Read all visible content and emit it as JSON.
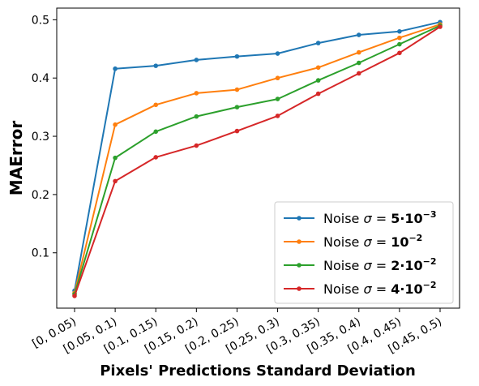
{
  "chart_data": {
    "type": "line",
    "title": "",
    "xlabel": "Pixels' Predictions Standard Deviation",
    "ylabel": "MAError",
    "categories": [
      "[0, 0.05)",
      "[0.05, 0.1)",
      "[0.1, 0.15)",
      "[0.15, 0.2)",
      "[0.2, 0.25)",
      "[0.25, 0.3)",
      "[0.3, 0.35)",
      "[0.35, 0.4)",
      "[0.4, 0.45)",
      "[0.45, 0.5)"
    ],
    "ylim": [
      0.005,
      0.52
    ],
    "yticks": [
      0.1,
      0.2,
      0.3,
      0.4,
      0.5
    ],
    "ytick_labels": [
      "0.1",
      "0.2",
      "0.3",
      "0.4",
      "0.5"
    ],
    "grid": false,
    "legend_position": "bottom-right",
    "series": [
      {
        "name": "Noise σ = 5·10⁻³",
        "legend": {
          "prefix": "Noise ",
          "sigma": "σ",
          "eq": " = ",
          "bold": "5·10",
          "sup": "−3"
        },
        "color": "#1f77b4",
        "values": [
          0.035,
          0.416,
          0.421,
          0.431,
          0.437,
          0.442,
          0.46,
          0.474,
          0.48,
          0.496
        ]
      },
      {
        "name": "Noise σ = 10⁻²",
        "legend": {
          "prefix": "Noise ",
          "sigma": "σ",
          "eq": " = ",
          "bold": "10",
          "sup": "−2"
        },
        "color": "#ff7f0e",
        "values": [
          0.031,
          0.32,
          0.354,
          0.374,
          0.38,
          0.4,
          0.418,
          0.444,
          0.469,
          0.492
        ]
      },
      {
        "name": "Noise σ = 2·10⁻²",
        "legend": {
          "prefix": "Noise ",
          "sigma": "σ",
          "eq": " = ",
          "bold": "2·10",
          "sup": "−2"
        },
        "color": "#2ca02c",
        "values": [
          0.029,
          0.263,
          0.308,
          0.334,
          0.35,
          0.364,
          0.396,
          0.426,
          0.458,
          0.49
        ]
      },
      {
        "name": "Noise σ = 4·10⁻²",
        "legend": {
          "prefix": "Noise ",
          "sigma": "σ",
          "eq": " = ",
          "bold": "4·10",
          "sup": "−2"
        },
        "color": "#d62728",
        "values": [
          0.026,
          0.223,
          0.264,
          0.284,
          0.309,
          0.335,
          0.373,
          0.408,
          0.443,
          0.488
        ]
      }
    ]
  }
}
